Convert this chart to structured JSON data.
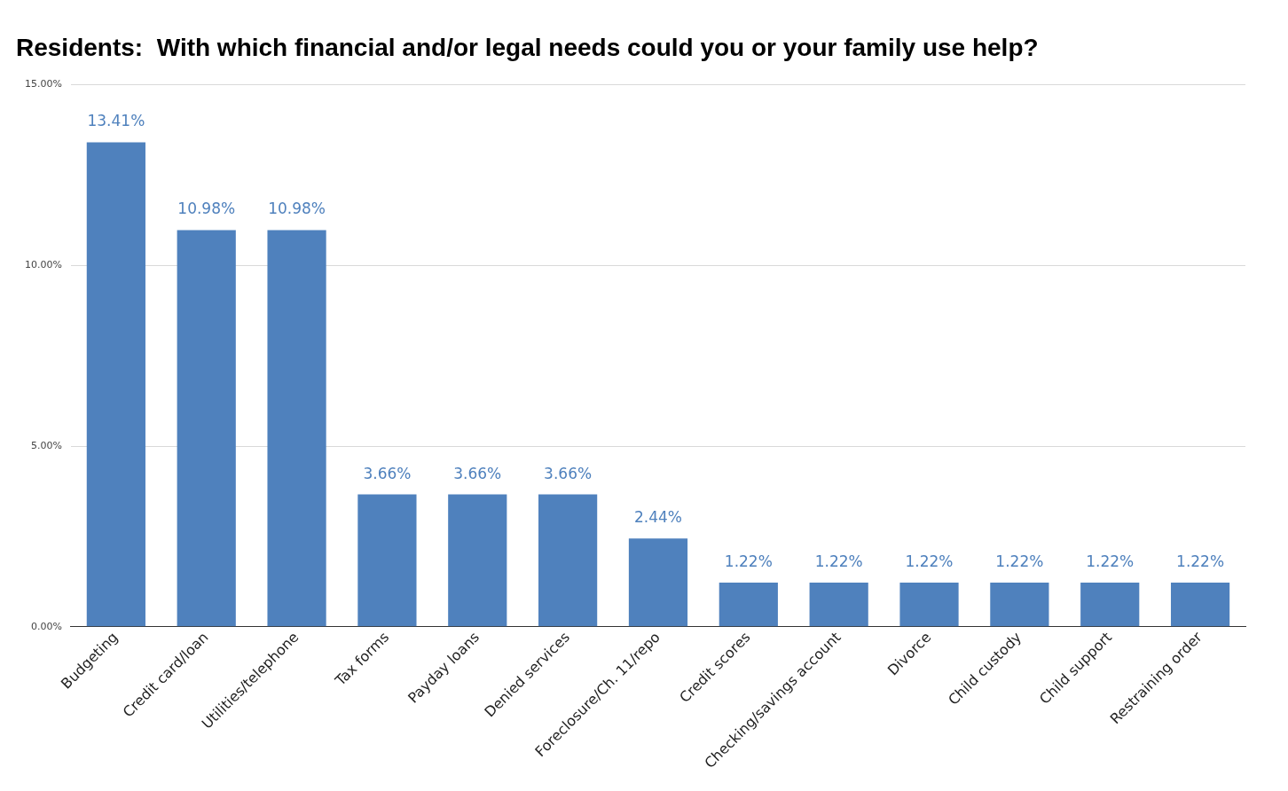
{
  "chart_data": {
    "type": "bar",
    "title": "Residents:  With which financial and/or legal needs could you or your family use help?",
    "categories": [
      "Budgeting",
      "Credit card/loan",
      "Utilities/telephone",
      "Tax forms",
      "Payday loans",
      "Denied services",
      "Foreclosure/Ch. 11/repo",
      "Credit scores",
      "Checking/savings account",
      "Divorce",
      "Child custody",
      "Child support",
      "Restraining order"
    ],
    "values": [
      13.41,
      10.98,
      10.98,
      3.66,
      3.66,
      3.66,
      2.44,
      1.22,
      1.22,
      1.22,
      1.22,
      1.22,
      1.22
    ],
    "value_labels": [
      "13.41%",
      "10.98%",
      "10.98%",
      "3.66%",
      "3.66%",
      "3.66%",
      "2.44%",
      "1.22%",
      "1.22%",
      "1.22%",
      "1.22%",
      "1.22%",
      "1.22%"
    ],
    "color": "#4f81bd",
    "ylim": [
      0,
      15
    ],
    "yticks": [
      {
        "value": 0,
        "label": "0.00%"
      },
      {
        "value": 5,
        "label": "5.00%"
      },
      {
        "value": 10,
        "label": "10.00%"
      },
      {
        "value": 15,
        "label": "15.00%"
      }
    ],
    "grid": "y",
    "legend": false
  }
}
